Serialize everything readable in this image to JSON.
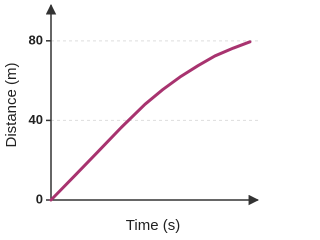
{
  "chart_data": {
    "type": "line",
    "x_label": "Time (s)",
    "y_label": "Distance (m)",
    "x": [
      0,
      1.2,
      2.27,
      3.4,
      4.54,
      5.4,
      6.23,
      7.1,
      7.92,
      8.8,
      9.61
    ],
    "series": [
      {
        "color": "#a8336f",
        "values": [
          0,
          12.8,
          24.3,
          36.5,
          48.1,
          55.5,
          61.8,
          67.5,
          72.4,
          76.3,
          79.5
        ]
      }
    ],
    "xlim": [
      0,
      10
    ],
    "ylim": [
      0,
      98
    ],
    "yticks": [
      0,
      40,
      80
    ],
    "grid": true
  }
}
